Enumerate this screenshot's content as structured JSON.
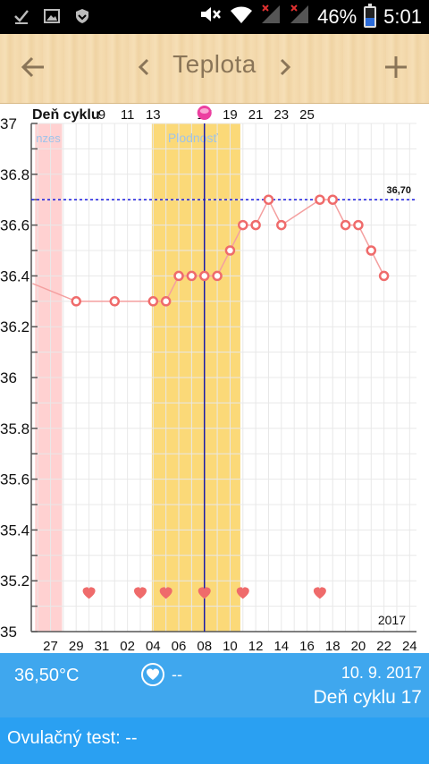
{
  "status_bar": {
    "battery": "46%",
    "time": "5:01",
    "icons": [
      "download-done-icon",
      "image-icon",
      "shield-icon",
      "mute-icon",
      "wifi-icon",
      "signal-no-service-icon",
      "signal-icon"
    ]
  },
  "app_bar": {
    "title": "Teplota",
    "back_icon": "arrow-left-icon",
    "prev_icon": "chevron-left-icon",
    "next_icon": "chevron-right-icon",
    "add_icon": "plus-icon"
  },
  "chart_data": {
    "type": "line",
    "header_label": "Deň cyklu",
    "cycle_day_labels": [
      "9",
      "11",
      "13",
      "17",
      "19",
      "21",
      "23",
      "25"
    ],
    "ovulation_cycle_day": "15",
    "x_tick_labels": [
      "27",
      "29",
      "31",
      "02",
      "04",
      "06",
      "08",
      "10",
      "12",
      "14",
      "16",
      "18",
      "20",
      "22",
      "24"
    ],
    "y_ticks": [
      "37",
      "36.8",
      "36.6",
      "36.4",
      "36.2",
      "36",
      "35.8",
      "35.6",
      "35.4",
      "35.2",
      "35"
    ],
    "ylim": [
      35,
      37
    ],
    "reference_line": {
      "value": 36.7,
      "label": "36,70"
    },
    "year_label": "2017",
    "menses_label": "nzes",
    "fertile_label": "Plodnosť",
    "series": [
      {
        "values": [
          {
            "x": 25.6,
            "y": 36.37
          },
          {
            "x": 29,
            "y": 36.3
          },
          {
            "x": 32,
            "y": 36.3
          },
          {
            "x": 35,
            "y": 36.3
          },
          {
            "x": 36,
            "y": 36.3
          },
          {
            "x": 37,
            "y": 36.4
          },
          {
            "x": 38,
            "y": 36.4
          },
          {
            "x": 39,
            "y": 36.4
          },
          {
            "x": 40,
            "y": 36.4
          },
          {
            "x": 41,
            "y": 36.5
          },
          {
            "x": 42,
            "y": 36.6
          },
          {
            "x": 43,
            "y": 36.6
          },
          {
            "x": 44,
            "y": 36.7
          },
          {
            "x": 45,
            "y": 36.6
          },
          {
            "x": 48,
            "y": 36.7
          },
          {
            "x": 49,
            "y": 36.7
          },
          {
            "x": 50,
            "y": 36.6
          },
          {
            "x": 51,
            "y": 36.6
          },
          {
            "x": 52,
            "y": 36.5
          },
          {
            "x": 53,
            "y": 36.4
          }
        ]
      }
    ],
    "hearts": [
      30,
      34,
      36,
      39,
      42,
      48
    ],
    "menses_range": [
      25.8,
      27.9
    ],
    "fertile_range": [
      34.9,
      41.8
    ],
    "ovulation_day": 39,
    "colors": {
      "line": "#f4a0a0",
      "marker": "#ef6b6b",
      "heart": "#ef6b6b",
      "menses": "#ffd1d1",
      "fertile": "#fbd978",
      "ovulation_line": "#1a1aa8",
      "reference": "#1a1ae0",
      "grid": "#e8e8e8"
    }
  },
  "info_panel": {
    "temperature": "36,50°C",
    "heart_icon": "heart-icon",
    "heart_value": "--",
    "date": "10. 9. 2017",
    "cycle_day": "Deň cyklu 17"
  },
  "ovulation_test": {
    "label": "Ovulačný test: --"
  }
}
